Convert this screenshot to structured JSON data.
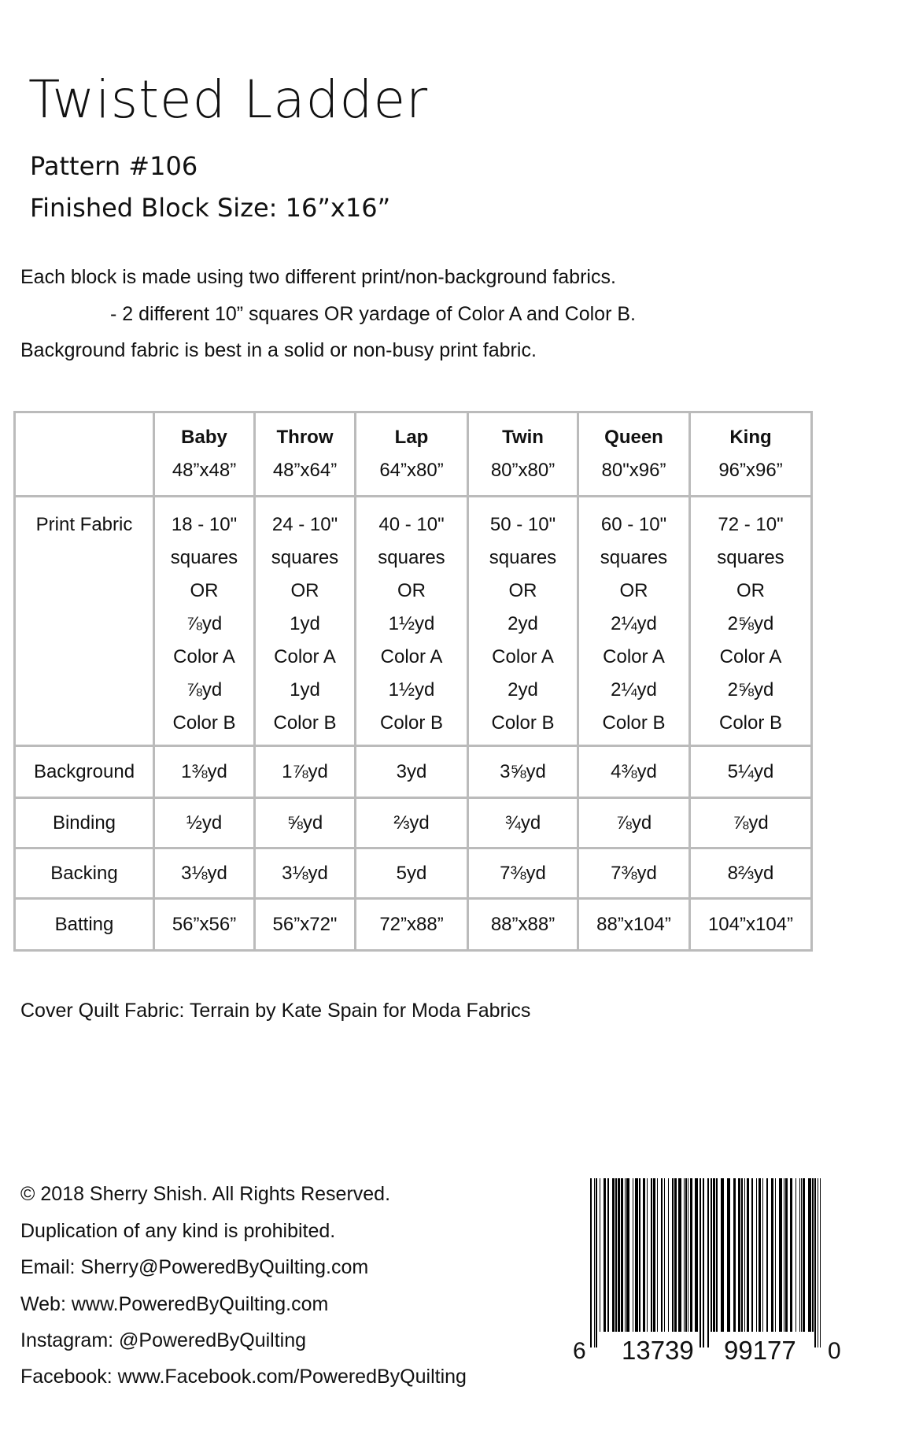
{
  "title": "Twisted Ladder",
  "pattern": "Pattern #106",
  "block_size": "Finished Block Size:  16”x16”",
  "intro": [
    "Each block is made using two different print/non-background fabrics.",
    "- 2 different 10” squares OR yardage of Color A and Color B.",
    "Background fabric is best in a solid or non-busy print fabric."
  ],
  "table": {
    "columns": [
      {
        "name": "Baby",
        "size": "48”x48”"
      },
      {
        "name": "Throw",
        "size": "48”x64”"
      },
      {
        "name": "Lap",
        "size": "64”x80”"
      },
      {
        "name": "Twin",
        "size": "80”x80”"
      },
      {
        "name": "Queen",
        "size": "80\"x96”"
      },
      {
        "name": "King",
        "size": "96”x96”"
      }
    ],
    "print_fabric": {
      "label": "Print Fabric",
      "cells": [
        [
          "18 - 10\"",
          "squares",
          "OR",
          "⅞yd",
          "Color A",
          "⅞yd",
          "Color B"
        ],
        [
          "24 - 10\"",
          "squares",
          "OR",
          "1yd",
          "Color A",
          "1yd",
          "Color B"
        ],
        [
          "40 - 10\"",
          "squares",
          "OR",
          "1½yd",
          "Color A",
          "1½yd",
          "Color B"
        ],
        [
          "50 - 10\"",
          "squares",
          "OR",
          "2yd",
          "Color A",
          "2yd",
          "Color B"
        ],
        [
          "60 - 10\"",
          "squares",
          "OR",
          "2¼yd",
          "Color A",
          "2¼yd",
          "Color B"
        ],
        [
          "72 - 10\"",
          "squares",
          "OR",
          "2⅝yd",
          "Color A",
          "2⅝yd",
          "Color B"
        ]
      ]
    },
    "rows": [
      {
        "label": "Background",
        "values": [
          "1⅜yd",
          "1⅞yd",
          "3yd",
          "3⅝yd",
          "4⅜yd",
          "5¼yd"
        ]
      },
      {
        "label": "Binding",
        "values": [
          "½yd",
          "⅝yd",
          "⅔yd",
          "¾yd",
          "⅞yd",
          "⅞yd"
        ]
      },
      {
        "label": "Backing",
        "values": [
          "3⅛yd",
          "3⅛yd",
          "5yd",
          "7⅜yd",
          "7⅜yd",
          "8⅔yd"
        ]
      },
      {
        "label": "Batting",
        "values": [
          "56”x56”",
          "56”x72\"",
          "72”x88”",
          "88”x88”",
          "88”x104”",
          "104”x104”"
        ]
      }
    ]
  },
  "cover_fabric": "Cover Quilt Fabric: Terrain by Kate Spain for Moda Fabrics",
  "footer": [
    "© 2018 Sherry Shish. All Rights Reserved.",
    "Duplication of any kind is prohibited.",
    "Email: Sherry@PoweredByQuilting.com",
    "Web: www.PoweredByQuilting.com",
    "Instagram: @PoweredByQuilting",
    "Facebook: www.Facebook.com/PoweredByQuilting"
  ],
  "barcode": {
    "first": "6",
    "left": "13739",
    "right": "99177",
    "last": "0"
  }
}
